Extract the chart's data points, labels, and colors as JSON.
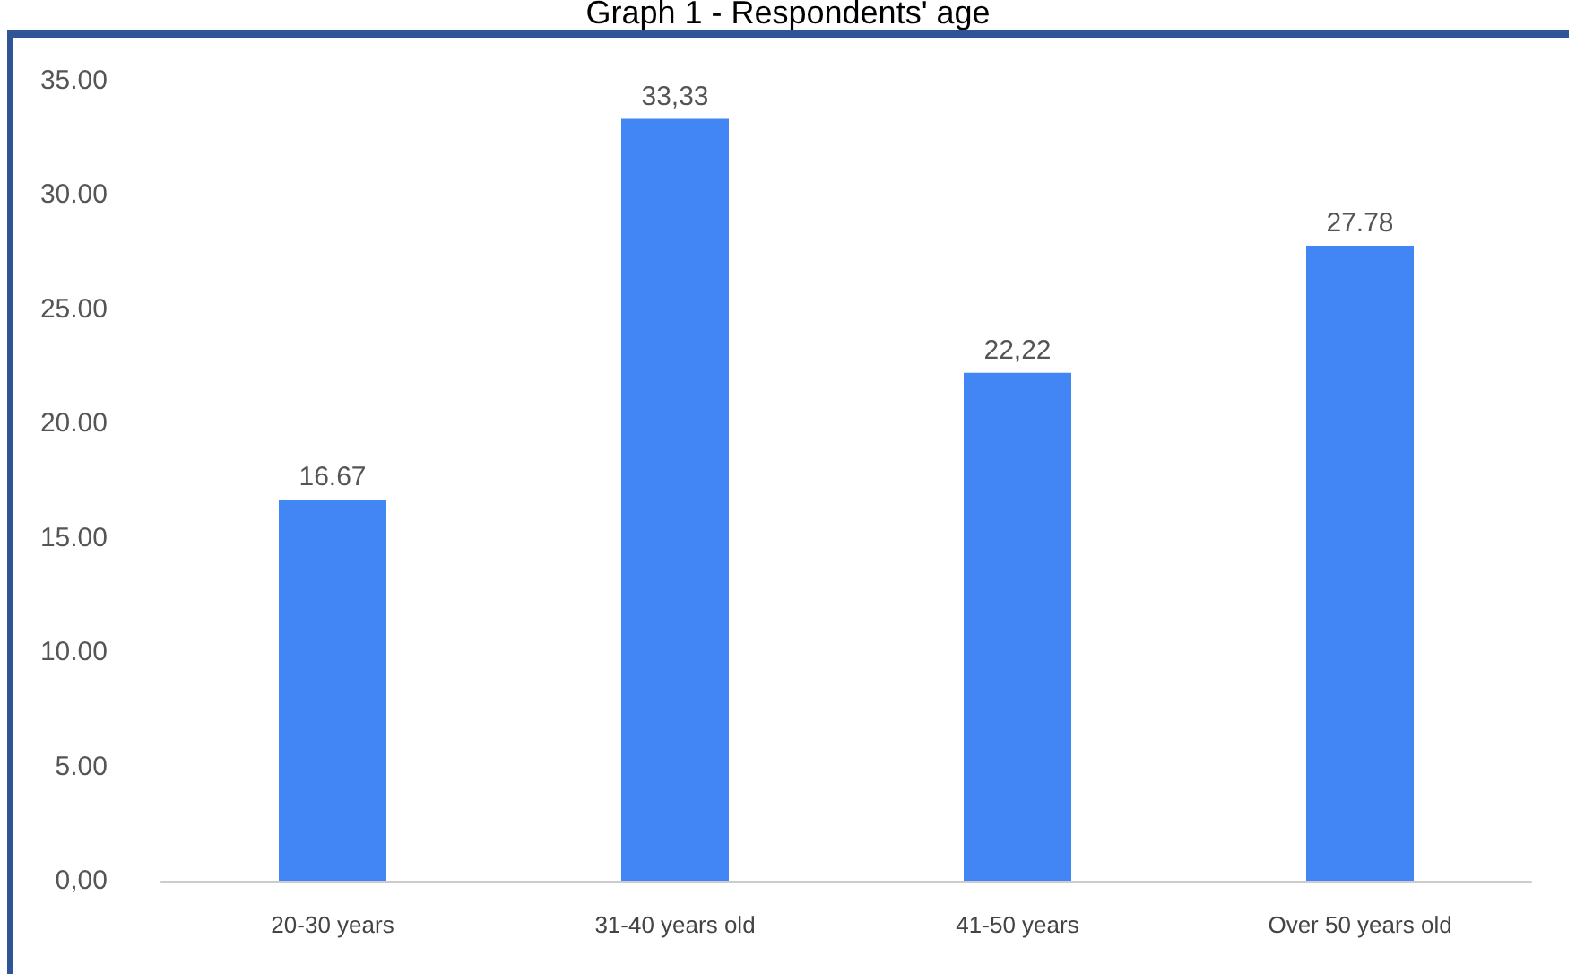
{
  "chart_data": {
    "type": "bar",
    "title": "Graph 1 - Respondents' age",
    "categories": [
      "20-30 years",
      "31-40 years old",
      "41-50 years",
      "Over 50 years old"
    ],
    "values": [
      16.67,
      33.33,
      22.22,
      27.78
    ],
    "value_labels": [
      "16.67",
      "33,33",
      "22,22",
      "27.78"
    ],
    "color": "#4285f4",
    "ylim": [
      0,
      35
    ],
    "yticks": [
      {
        "value": 0,
        "label": "0,00"
      },
      {
        "value": 5,
        "label": "5.00"
      },
      {
        "value": 10,
        "label": "10.00"
      },
      {
        "value": 15,
        "label": "15.00"
      },
      {
        "value": 20,
        "label": "20.00"
      },
      {
        "value": 25,
        "label": "25.00"
      },
      {
        "value": 30,
        "label": "30.00"
      },
      {
        "value": 35,
        "label": "35.00"
      }
    ],
    "grid": false
  }
}
